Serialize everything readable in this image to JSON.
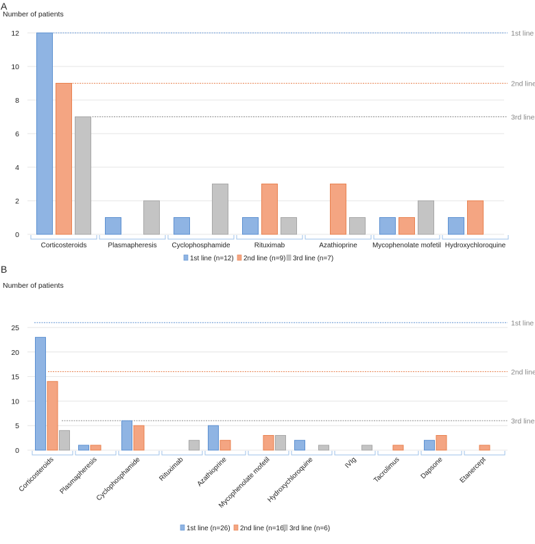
{
  "colors": {
    "1st line": "#8fb4e3",
    "2nd line": "#f4a582",
    "3rd line": "#c4c4c4",
    "1st_stroke": "#5b8fd0",
    "2nd_stroke": "#e8804e",
    "3rd_stroke": "#a6a6a6"
  },
  "chart_data": [
    {
      "panel_label": "A",
      "type": "bar",
      "ylabel": "Number of patients",
      "ylim": [
        0,
        12
      ],
      "yticks": [
        0,
        2,
        4,
        6,
        8,
        10,
        12
      ],
      "categories": [
        "Corticosteroids",
        "Plasmapheresis",
        "Cyclophosphamide",
        "Rituximab",
        "Azathioprine",
        "Mycophenolate mofetil",
        "Hydroxychloroquine"
      ],
      "series": [
        {
          "name": "1st line (n=12)",
          "values": [
            12,
            1,
            1,
            1,
            0,
            1,
            1
          ]
        },
        {
          "name": "2nd line (n=9)",
          "values": [
            9,
            0,
            0,
            3,
            3,
            1,
            2
          ]
        },
        {
          "name": "3rd line (n=7)",
          "values": [
            7,
            2,
            3,
            1,
            1,
            2,
            0
          ]
        }
      ],
      "reference_lines": [
        {
          "label": "1st line",
          "value": 12
        },
        {
          "label": "2nd line",
          "value": 9
        },
        {
          "label": "3rd line",
          "value": 7
        }
      ],
      "legend": "bottom",
      "grid": true
    },
    {
      "panel_label": "B",
      "type": "bar",
      "ylabel": "Number of patients",
      "ylim": [
        0,
        25
      ],
      "yticks": [
        0,
        5,
        10,
        15,
        20,
        25
      ],
      "categories": [
        "Corticosteroids",
        "Plasmapheresis",
        "Cyclophosphamide",
        "Rituximab",
        "Azathioprine",
        "Mycophenolate mofetil",
        "Hydroxychloroquine",
        "IVIg",
        "Tacrolimus",
        "Dapsone",
        "Etanercept"
      ],
      "series": [
        {
          "name": "1st line (n=26)",
          "values": [
            23,
            1,
            6,
            0,
            5,
            0,
            2,
            0,
            0,
            2,
            0
          ]
        },
        {
          "name": "2nd line (n=16)",
          "values": [
            14,
            1,
            5,
            0,
            2,
            3,
            0,
            0,
            1,
            3,
            1
          ]
        },
        {
          "name": "3rd line (n=6)",
          "values": [
            4,
            0,
            0,
            2,
            0,
            3,
            1,
            1,
            0,
            0,
            0
          ]
        }
      ],
      "reference_lines": [
        {
          "label": "1st line",
          "value": 26
        },
        {
          "label": "2nd line",
          "value": 16
        },
        {
          "label": "3rd line",
          "value": 6
        }
      ],
      "legend": "bottom",
      "grid": true
    }
  ]
}
